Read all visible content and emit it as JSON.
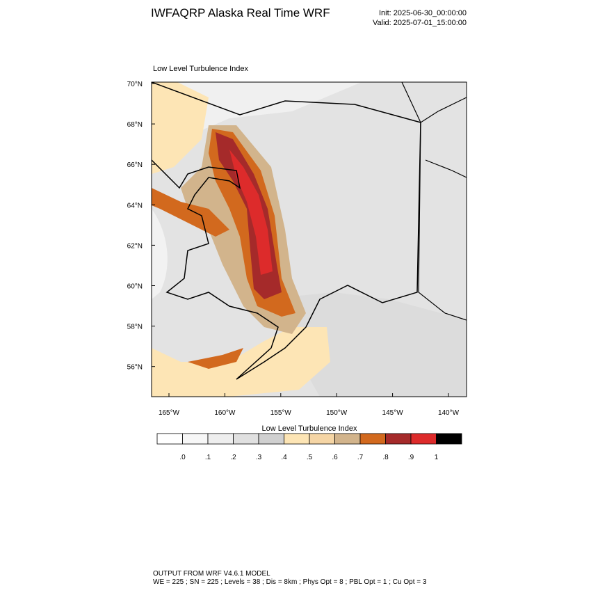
{
  "header": {
    "title": "IWFAQRP Alaska Real Time WRF",
    "init": "Init: 2025-06-30_00:00:00",
    "valid": "Valid: 2025-07-01_15:00:00"
  },
  "map": {
    "title": "Low Level Turbulence Index",
    "lat_labels": [
      "70°N",
      "68°N",
      "66°N",
      "64°N",
      "62°N",
      "60°N",
      "58°N",
      "56°N"
    ],
    "lon_labels": [
      "165°W",
      "160°W",
      "155°W",
      "150°W",
      "145°W",
      "140°W"
    ]
  },
  "colorbar": {
    "title": "Low Level Turbulence Index",
    "colors": [
      "#ffffff",
      "#f7f7f7",
      "#eeeeee",
      "#e0e0e0",
      "#d0d0d0",
      "#fde5b5",
      "#f5d5a5",
      "#d2b48c",
      "#d2691e",
      "#a52a2a",
      "#dd2b2b",
      "#000000"
    ],
    "labels": [
      ".0",
      ".1",
      ".2",
      ".3",
      ".4",
      ".5",
      ".6",
      ".7",
      ".8",
      ".9",
      "1"
    ]
  },
  "footer": {
    "line1": "OUTPUT FROM WRF V4.6.1 MODEL",
    "line2": "WE = 225 ; SN = 225 ; Levels = 38 ; Dis = 8km ; Phys Opt = 8 ; PBL Opt = 1 ; Cu Opt = 3"
  }
}
